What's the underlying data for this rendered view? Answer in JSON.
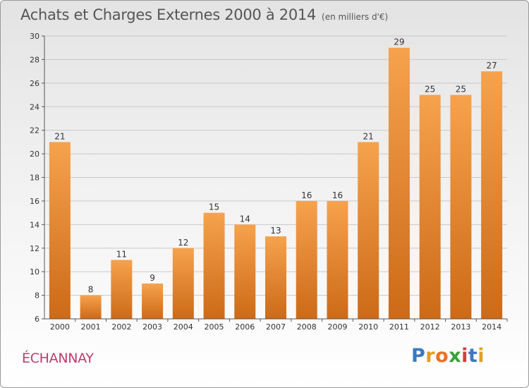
{
  "header": {
    "title": "Achats et Charges Externes 2000 à 2014",
    "subtitle": "(en milliers d'€)"
  },
  "footer": {
    "commune": "ÉCHANNAY",
    "logo_letters": [
      "P",
      "r",
      "o",
      "x",
      "i",
      "t",
      "i"
    ],
    "logo_colors": [
      "#3a78c4",
      "#e0a020",
      "#f07020",
      "#3aa03a",
      "#d04040",
      "#3a78c4",
      "#e0a020"
    ]
  },
  "colors": {
    "bar_top": "#f6a24d",
    "bar_bottom": "#cc6a18",
    "grid": "#c8c8c8",
    "axis": "#555555"
  },
  "chart_data": {
    "type": "bar",
    "title": "Achats et Charges Externes 2000 à 2014",
    "subtitle": "(en milliers d'€)",
    "categories": [
      "2000",
      "2001",
      "2002",
      "2003",
      "2004",
      "2005",
      "2006",
      "2007",
      "2008",
      "2009",
      "2010",
      "2011",
      "2012",
      "2013",
      "2014"
    ],
    "values": [
      21,
      8,
      11,
      9,
      12,
      15,
      14,
      13,
      16,
      16,
      21,
      29,
      25,
      25,
      27
    ],
    "ylim": [
      6,
      30
    ],
    "yticks": [
      6,
      8,
      10,
      12,
      14,
      16,
      18,
      20,
      22,
      24,
      26,
      28,
      30
    ],
    "grid": true,
    "data_labels": true
  }
}
